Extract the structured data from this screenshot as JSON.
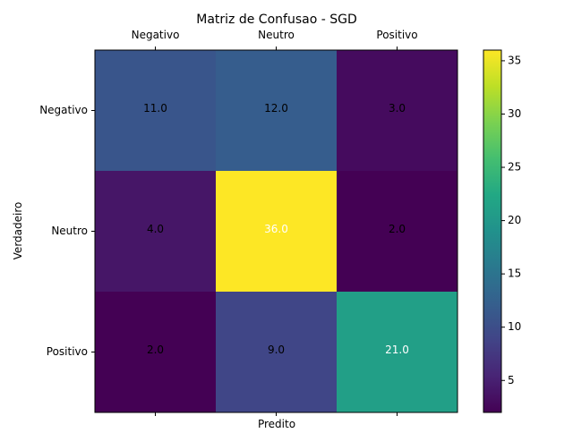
{
  "chart_data": {
    "type": "heatmap",
    "title": "Matriz de Confusao - SGD",
    "xlabel": "Predito",
    "ylabel": "Verdadeiro",
    "x_categories": [
      "Negativo",
      "Neutro",
      "Positivo"
    ],
    "y_categories": [
      "Negativo",
      "Neutro",
      "Positivo"
    ],
    "values": [
      [
        11.0,
        12.0,
        3.0
      ],
      [
        4.0,
        36.0,
        2.0
      ],
      [
        2.0,
        9.0,
        21.0
      ]
    ],
    "cell_labels": [
      [
        "11.0",
        "12.0",
        "3.0"
      ],
      [
        "4.0",
        "36.0",
        "2.0"
      ],
      [
        "2.0",
        "9.0",
        "21.0"
      ]
    ],
    "colormap": "viridis",
    "color_range": [
      2,
      36
    ],
    "colorbar_ticks": [
      5,
      10,
      15,
      20,
      25,
      30,
      35
    ],
    "x_tick_position": "top",
    "grid": false
  }
}
